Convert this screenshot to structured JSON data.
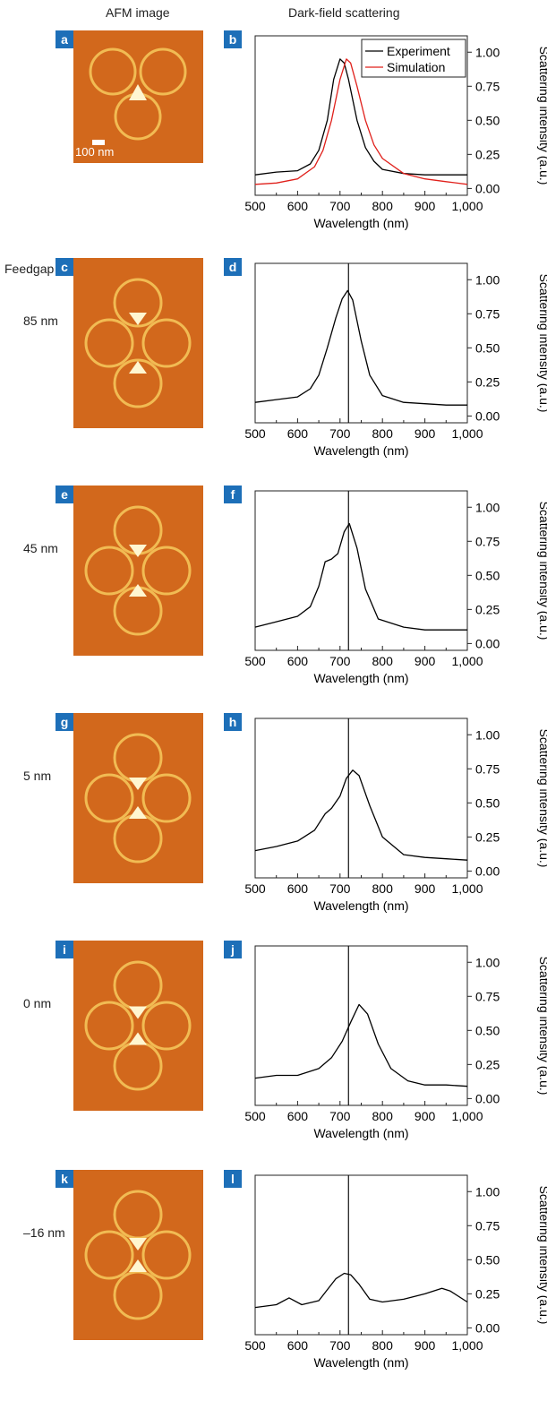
{
  "headers": {
    "afm": "AFM image",
    "darkfield": "Dark-field scattering"
  },
  "colors": {
    "badge": "#1d6fb8",
    "afm_bg": "#d2681c",
    "afm_feature": "#f5c45a",
    "experiment": "#000000",
    "simulation": "#e0201b"
  },
  "axis": {
    "xlabel": "Wavelength (nm)",
    "ylabel": "Scattering intensity (a.u.)",
    "xticks": [
      "500",
      "600",
      "700",
      "800",
      "900",
      "1,000"
    ],
    "yticks": [
      "0.00",
      "0.25",
      "0.50",
      "0.75",
      "1.00"
    ]
  },
  "rows": [
    {
      "afm_letter": "a",
      "plot_letter": "b",
      "label1": "",
      "label2": "",
      "scale_bar": "100 nm"
    },
    {
      "afm_letter": "c",
      "plot_letter": "d",
      "label1": "Feedgap",
      "label2": "85 nm",
      "scale_bar": ""
    },
    {
      "afm_letter": "e",
      "plot_letter": "f",
      "label1": "",
      "label2": "45 nm",
      "scale_bar": ""
    },
    {
      "afm_letter": "g",
      "plot_letter": "h",
      "label1": "",
      "label2": "5 nm",
      "scale_bar": ""
    },
    {
      "afm_letter": "i",
      "plot_letter": "j",
      "label1": "",
      "label2": "0 nm",
      "scale_bar": ""
    },
    {
      "afm_letter": "k",
      "plot_letter": "l",
      "label1": "",
      "label2": "–16 nm",
      "scale_bar": ""
    }
  ],
  "chart_data": [
    {
      "type": "line",
      "panel": "b",
      "xlim": [
        500,
        1000
      ],
      "ylim": [
        -0.05,
        1.12
      ],
      "xlabel": "Wavelength (nm)",
      "ylabel": "Scattering intensity (a.u.)",
      "legend": {
        "position": "top-right",
        "entries": [
          "Experiment",
          "Simulation"
        ]
      },
      "series": [
        {
          "name": "Experiment",
          "color": "#000000",
          "x": [
            500,
            550,
            600,
            630,
            650,
            670,
            685,
            700,
            710,
            720,
            740,
            760,
            780,
            800,
            850,
            900,
            950,
            1000
          ],
          "y": [
            0.1,
            0.12,
            0.13,
            0.18,
            0.28,
            0.5,
            0.8,
            0.95,
            0.92,
            0.8,
            0.5,
            0.3,
            0.2,
            0.14,
            0.11,
            0.1,
            0.1,
            0.1
          ]
        },
        {
          "name": "Simulation",
          "color": "#e0201b",
          "x": [
            500,
            550,
            600,
            640,
            660,
            680,
            700,
            715,
            725,
            740,
            760,
            780,
            800,
            850,
            900,
            950,
            1000
          ],
          "y": [
            0.03,
            0.04,
            0.07,
            0.16,
            0.28,
            0.5,
            0.8,
            0.95,
            0.92,
            0.75,
            0.5,
            0.32,
            0.22,
            0.11,
            0.07,
            0.05,
            0.03
          ]
        }
      ]
    },
    {
      "type": "line",
      "panel": "d",
      "xlim": [
        500,
        1000
      ],
      "ylim": [
        -0.05,
        1.12
      ],
      "vline": 720,
      "xlabel": "Wavelength (nm)",
      "ylabel": "Scattering intensity (a.u.)",
      "series": [
        {
          "x": [
            500,
            550,
            600,
            630,
            650,
            670,
            690,
            705,
            718,
            730,
            750,
            770,
            800,
            850,
            900,
            950,
            1000
          ],
          "y": [
            0.1,
            0.12,
            0.14,
            0.2,
            0.3,
            0.5,
            0.72,
            0.86,
            0.92,
            0.85,
            0.55,
            0.3,
            0.15,
            0.1,
            0.09,
            0.08,
            0.08
          ]
        }
      ]
    },
    {
      "type": "line",
      "panel": "f",
      "xlim": [
        500,
        1000
      ],
      "ylim": [
        -0.05,
        1.12
      ],
      "vline": 720,
      "xlabel": "Wavelength (nm)",
      "ylabel": "Scattering intensity (a.u.)",
      "series": [
        {
          "x": [
            500,
            550,
            600,
            630,
            650,
            665,
            680,
            695,
            710,
            722,
            740,
            760,
            790,
            850,
            900,
            950,
            1000
          ],
          "y": [
            0.12,
            0.16,
            0.2,
            0.27,
            0.42,
            0.6,
            0.62,
            0.66,
            0.82,
            0.88,
            0.7,
            0.4,
            0.18,
            0.12,
            0.1,
            0.1,
            0.1
          ]
        }
      ]
    },
    {
      "type": "line",
      "panel": "h",
      "xlim": [
        500,
        1000
      ],
      "ylim": [
        -0.05,
        1.12
      ],
      "vline": 720,
      "xlabel": "Wavelength (nm)",
      "ylabel": "Scattering intensity (a.u.)",
      "series": [
        {
          "x": [
            500,
            550,
            600,
            640,
            665,
            680,
            700,
            715,
            730,
            745,
            770,
            800,
            850,
            900,
            950,
            1000
          ],
          "y": [
            0.15,
            0.18,
            0.22,
            0.3,
            0.42,
            0.46,
            0.55,
            0.68,
            0.74,
            0.7,
            0.48,
            0.25,
            0.12,
            0.1,
            0.09,
            0.08
          ]
        }
      ]
    },
    {
      "type": "line",
      "panel": "j",
      "xlim": [
        500,
        1000
      ],
      "ylim": [
        -0.05,
        1.12
      ],
      "vline": 720,
      "xlabel": "Wavelength (nm)",
      "ylabel": "Scattering intensity (a.u.)",
      "series": [
        {
          "x": [
            500,
            550,
            600,
            650,
            680,
            705,
            725,
            745,
            765,
            790,
            820,
            860,
            900,
            950,
            1000
          ],
          "y": [
            0.15,
            0.17,
            0.17,
            0.22,
            0.3,
            0.42,
            0.56,
            0.69,
            0.62,
            0.4,
            0.22,
            0.13,
            0.1,
            0.1,
            0.09
          ]
        }
      ]
    },
    {
      "type": "line",
      "panel": "l",
      "xlim": [
        500,
        1000
      ],
      "ylim": [
        -0.05,
        1.12
      ],
      "vline": 720,
      "xlabel": "Wavelength (nm)",
      "ylabel": "Scattering intensity (a.u.)",
      "series": [
        {
          "x": [
            500,
            550,
            580,
            610,
            650,
            690,
            710,
            725,
            745,
            770,
            800,
            850,
            900,
            940,
            960,
            1000
          ],
          "y": [
            0.15,
            0.17,
            0.22,
            0.17,
            0.2,
            0.36,
            0.4,
            0.39,
            0.32,
            0.21,
            0.19,
            0.21,
            0.25,
            0.29,
            0.27,
            0.19
          ]
        }
      ]
    }
  ]
}
